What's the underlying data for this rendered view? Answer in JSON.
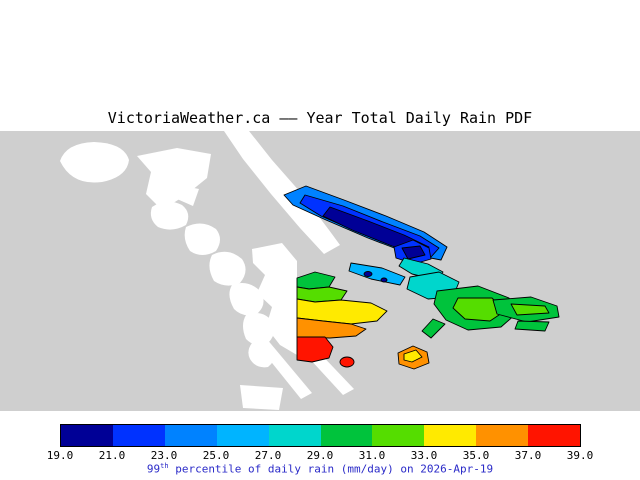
{
  "title": "VictoriaWeather.ca —— Year Total Daily Rain PDF",
  "caption": {
    "prefix": "99",
    "superscript": "th",
    "text": " percentile of daily rain (mm/day) on 2026-Apr-19",
    "color": "#2a2ac8"
  },
  "colorbar": {
    "tick_labels": [
      "19.0",
      "21.0",
      "23.0",
      "25.0",
      "27.0",
      "29.0",
      "31.0",
      "33.0",
      "35.0",
      "37.0",
      "39.0"
    ],
    "colors": [
      "#000096",
      "#0032ff",
      "#0082ff",
      "#00b4ff",
      "#00d6cc",
      "#00c33c",
      "#55dd00",
      "#ffea00",
      "#ff9100",
      "#ff1400"
    ]
  },
  "map": {
    "background_color": "#cfcfcf",
    "land_color": "#ffffff",
    "outline_color": "#000000"
  },
  "chart_data": {
    "type": "heatmap",
    "title": "VictoriaWeather.ca —— Year Total Daily Rain PDF",
    "quantity": "99th percentile of daily rain",
    "units": "mm/day",
    "date": "2026-Apr-19",
    "colorbar_ticks": [
      19,
      21,
      23,
      25,
      27,
      29,
      31,
      33,
      35,
      37,
      39
    ],
    "colorbar_colors": [
      "#000096",
      "#0032ff",
      "#0082ff",
      "#00b4ff",
      "#00d6cc",
      "#00c33c",
      "#55dd00",
      "#ffea00",
      "#ff9100",
      "#ff1400"
    ],
    "value_range": [
      19,
      39
    ],
    "legend_position": "bottom",
    "grid": false,
    "regions": [
      {
        "area": "elongated island chain, upper center-right",
        "values_mm_day": [
          19,
          25
        ]
      },
      {
        "area": "small islets, center",
        "values_mm_day": [
          25,
          29
        ]
      },
      {
        "area": "island cluster, center-right",
        "values_mm_day": [
          27,
          33
        ]
      },
      {
        "area": "elongated islands, far right",
        "values_mm_day": [
          29,
          33
        ]
      },
      {
        "area": "peninsula, center-left (data clipped at straight west edge)",
        "values_mm_day": [
          29,
          39
        ]
      },
      {
        "area": "small islet, lower center",
        "values_mm_day": [
          37,
          39
        ]
      },
      {
        "area": "small islet, lower center-right",
        "values_mm_day": [
          33,
          37
        ]
      }
    ]
  }
}
